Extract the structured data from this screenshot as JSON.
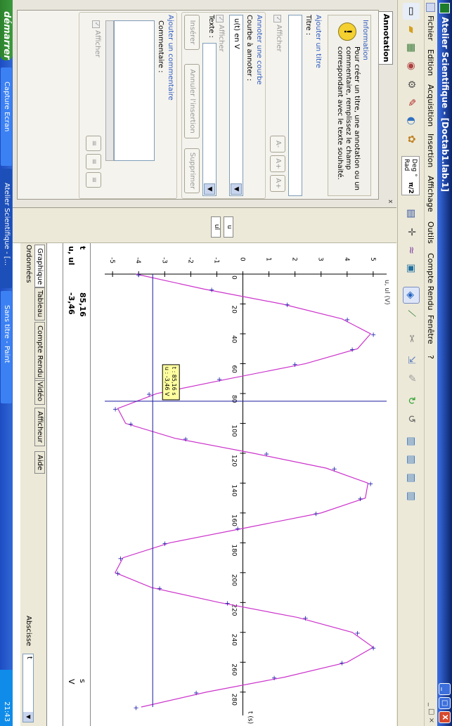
{
  "window": {
    "title": "Atelier Scientifique - [Doctab1.lab.1]",
    "minimize": "_",
    "restore": "□",
    "close": "X"
  },
  "menu": {
    "items": [
      "Fichier",
      "Edition",
      "Acquisition",
      "Insertion",
      "Affichage",
      "Outils",
      "Compte Rendu",
      "Fenêtre",
      "?"
    ],
    "mdi_controls": "_ □ ×"
  },
  "toolbar": {
    "angle_deg": "Deg °",
    "angle_rad": "Rad",
    "angle_pi": "π/2"
  },
  "annotation_panel": {
    "tab": "Annotation",
    "close": "x",
    "info": {
      "title": "Information",
      "text": "Pour créer un titre, une annotation ou un commentaire, remplissez le champ correspondant avec le texte souhaité."
    },
    "titre": {
      "section": "Ajouter un titre",
      "label": "Titre :",
      "afficher": "Afficher",
      "sizes": [
        "A-",
        "A+",
        "A+"
      ]
    },
    "courbe": {
      "section": "Annoter une courbe",
      "label": "Courbe à annoter :",
      "value": "u(t) en V",
      "afficher": "Afficher",
      "texte_label": "Texte :",
      "inserer": "Insérer",
      "annuler": "Annuler l'insertion",
      "supprimer": "Supprimer"
    },
    "commentaire": {
      "section": "Ajouter un commentaire",
      "label": "Commentaire :",
      "afficher": "Afficher"
    }
  },
  "side_tools": {
    "u_label": "u",
    "ul_label": "ul"
  },
  "chart_data": {
    "type": "line",
    "ylabel": "u, ul (V)",
    "xlabel": "t (s)",
    "xlim": [
      0,
      290
    ],
    "ylim": [
      -5.3,
      5.3
    ],
    "xticks": [
      0,
      20,
      40,
      60,
      80,
      100,
      120,
      140,
      160,
      180,
      200,
      220,
      240,
      260,
      280
    ],
    "yticks": [
      -5,
      -4,
      -3,
      -2,
      -1,
      0,
      1,
      2,
      3,
      4,
      5
    ],
    "series": [
      {
        "name": "u",
        "points": [
          [
            0,
            -4.0
          ],
          [
            10,
            -1.2
          ],
          [
            20,
            1.7
          ],
          [
            30,
            4.0
          ],
          [
            40,
            5.0
          ],
          [
            50,
            4.2
          ],
          [
            60,
            2.0
          ],
          [
            70,
            -0.9
          ],
          [
            80,
            -3.6
          ],
          [
            90,
            -4.9
          ],
          [
            100,
            -4.3
          ],
          [
            110,
            -2.2
          ],
          [
            120,
            0.9
          ],
          [
            130,
            3.5
          ],
          [
            140,
            4.9
          ],
          [
            150,
            4.5
          ],
          [
            160,
            2.8
          ],
          [
            170,
            -0.2
          ],
          [
            180,
            -3.0
          ],
          [
            190,
            -4.7
          ],
          [
            200,
            -4.8
          ],
          [
            210,
            -3.2
          ],
          [
            220,
            -0.6
          ],
          [
            230,
            2.4
          ],
          [
            240,
            4.4
          ],
          [
            250,
            5.0
          ],
          [
            260,
            3.8
          ],
          [
            270,
            1.2
          ],
          [
            280,
            -1.8
          ],
          [
            290,
            -4.1
          ]
        ]
      },
      {
        "name": "ul",
        "points": [
          [
            0,
            -4.1
          ],
          [
            10,
            -1.5
          ],
          [
            20,
            1.5
          ],
          [
            30,
            3.8
          ],
          [
            40,
            4.9
          ],
          [
            50,
            4.4
          ],
          [
            60,
            2.4
          ],
          [
            70,
            -0.5
          ],
          [
            80,
            -3.3
          ],
          [
            90,
            -4.8
          ],
          [
            100,
            -4.5
          ],
          [
            110,
            -2.6
          ],
          [
            120,
            0.4
          ],
          [
            130,
            3.2
          ],
          [
            140,
            4.8
          ],
          [
            150,
            4.7
          ],
          [
            160,
            3.0
          ],
          [
            170,
            0.1
          ],
          [
            180,
            -2.8
          ],
          [
            190,
            -4.6
          ],
          [
            200,
            -4.9
          ],
          [
            210,
            -3.5
          ],
          [
            220,
            -0.9
          ],
          [
            230,
            2.1
          ],
          [
            240,
            4.2
          ],
          [
            250,
            5.0
          ],
          [
            260,
            4.0
          ],
          [
            270,
            1.6
          ],
          [
            280,
            -1.4
          ],
          [
            290,
            -3.9
          ]
        ]
      }
    ],
    "cursor": {
      "t": 85.16,
      "u": -3.46
    },
    "tooltip": [
      "t : 85,16 s",
      "u : -3,46 V"
    ]
  },
  "info_table": {
    "row1_label": "t",
    "row1_value": "85,16",
    "row1_unit": "s",
    "row2_label": "u, ul",
    "row2_value": "-3,46",
    "row2_unit": "V",
    "abscisse": "Abscisse",
    "abscisse_value": "t",
    "ordonnees": "Ordonnées"
  },
  "bottom_tabs": [
    "Graphique",
    "Tableau",
    "Compte Rendu",
    "Vidéo",
    "Afficheur",
    "Aide"
  ],
  "taskbar": {
    "start": "démarrer",
    "tasks": [
      "Capture Ecran",
      "Atelier Scientifique - [...",
      "Sans titre - Paint"
    ],
    "clock": "21:43"
  },
  "colors": {
    "curve": "#cc33cc",
    "marker": "#2222aa",
    "cursor": "#1a1aa0",
    "tooltip_bg": "#ffffa0",
    "accent": "#2f5bbd"
  }
}
